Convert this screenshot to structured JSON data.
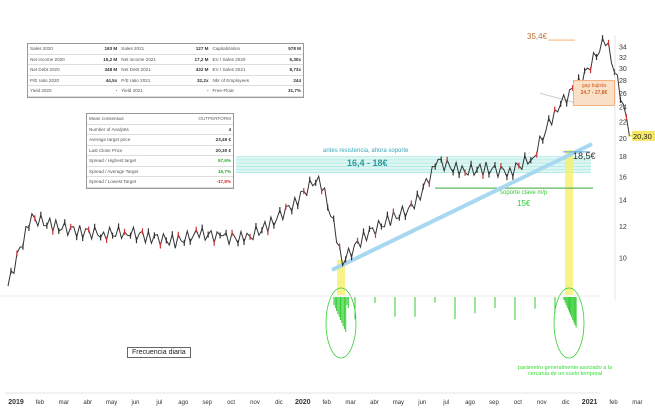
{
  "fundamentals": [
    [
      [
        "Sales 2020",
        "193 M"
      ],
      [
        "Sales 2021",
        "127 M"
      ],
      [
        "Capitalization",
        "578 M"
      ]
    ],
    [
      [
        "Net income 2020",
        "15,2 M"
      ],
      [
        "Net income 2021",
        "17,2 M"
      ],
      [
        "EV / Sales 2020",
        "5,30x"
      ]
    ],
    [
      [
        "Net Debt 2020",
        "348 M"
      ],
      [
        "Net Debt 2021",
        "432 M"
      ],
      [
        "EV / Sales 2021",
        "8,73x"
      ]
    ],
    [
      [
        "P/E ratio 2020",
        "44,5x"
      ],
      [
        "P/E ratio 2021",
        "32,2x"
      ],
      [
        "Nbr of Employees",
        "244"
      ]
    ],
    [
      [
        "Yield 2020",
        "-"
      ],
      [
        "Yield 2021",
        "-"
      ],
      [
        "Free-Float",
        "31,7%"
      ]
    ]
  ],
  "consensus": [
    {
      "label": "Mean consensus",
      "value": "OUTPERFORM",
      "color": ""
    },
    {
      "label": "Number of Analysts",
      "value": "4",
      "color": ""
    },
    {
      "label": "Average target price",
      "value": "23,49 €",
      "color": ""
    },
    {
      "label": "Last Close Price",
      "value": "20,30 €",
      "color": ""
    },
    {
      "label": "Spread / Highest target",
      "value": "57,6%",
      "color": "g"
    },
    {
      "label": "Spread / Average Target",
      "value": "15,7%",
      "color": "g"
    },
    {
      "label": "Spread / Lowest Target",
      "value": "-17,8%",
      "color": "r"
    }
  ],
  "annotations": {
    "peak": "35,4€",
    "gap_title": "gap bajista",
    "gap_range": "24,7 - 27,8€",
    "support_title": "antes resistencia, ahora soporte",
    "support_range": "16,4 - 18€",
    "key_support_title": "soporte clave m/p",
    "key_support_value": "15€",
    "low_level": "18,5€",
    "frequency": "Frecuencia diaria",
    "note_line1": "parámetro generalmente asociado a la",
    "note_line2": "cercanía de un suelo temporal"
  },
  "colors": {
    "price": "#333333",
    "trend": "#a8d8f0",
    "support_zone": "#9fe6dd",
    "key_support": "#5cb85c",
    "gap": "#f4a460",
    "highlight": "#f5f06a",
    "volume": "#33cc33",
    "last_price_bg": "#f5e663"
  },
  "chart_data": {
    "type": "line",
    "scale": "log",
    "ylim": [
      9,
      36
    ],
    "y_ticks": [
      10,
      12,
      14,
      16,
      18,
      20,
      22,
      24,
      26,
      28,
      30,
      32,
      34
    ],
    "last_price": "20,30",
    "x_ticks": [
      "2019",
      "feb",
      "mar",
      "abr",
      "may",
      "jun",
      "jul",
      "ago",
      "sep",
      "oct",
      "nov",
      "dic",
      "2020",
      "feb",
      "mar",
      "abr",
      "may",
      "jun",
      "jul",
      "ago",
      "sep",
      "oct",
      "nov",
      "dic",
      "2021",
      "feb",
      "mar"
    ],
    "x": [
      "2019-01",
      "2019-02",
      "2019-03",
      "2019-04",
      "2019-05",
      "2019-06",
      "2019-07",
      "2019-08",
      "2019-09",
      "2019-10",
      "2019-11",
      "2019-12",
      "2020-01",
      "2020-02",
      "2020-03",
      "2020-04",
      "2020-05",
      "2020-06",
      "2020-07",
      "2020-08",
      "2020-09",
      "2020-10",
      "2020-11",
      "2020-12",
      "2021-01",
      "2021-01b",
      "2021-02"
    ],
    "values": [
      8.5,
      12.6,
      12.0,
      11.7,
      11.5,
      11.6,
      11.3,
      11.0,
      11.5,
      11.3,
      11.2,
      12.2,
      13.8,
      16.0,
      9.8,
      11.5,
      12.5,
      13.5,
      17.5,
      16.5,
      16.8,
      16.5,
      18.0,
      24.0,
      28.0,
      35.4,
      20.3
    ],
    "levels": {
      "support_zone": [
        16.4,
        18
      ],
      "key_support": 15,
      "gap": [
        24.7,
        27.8
      ],
      "peak": 35.4,
      "low": 18.5
    }
  }
}
